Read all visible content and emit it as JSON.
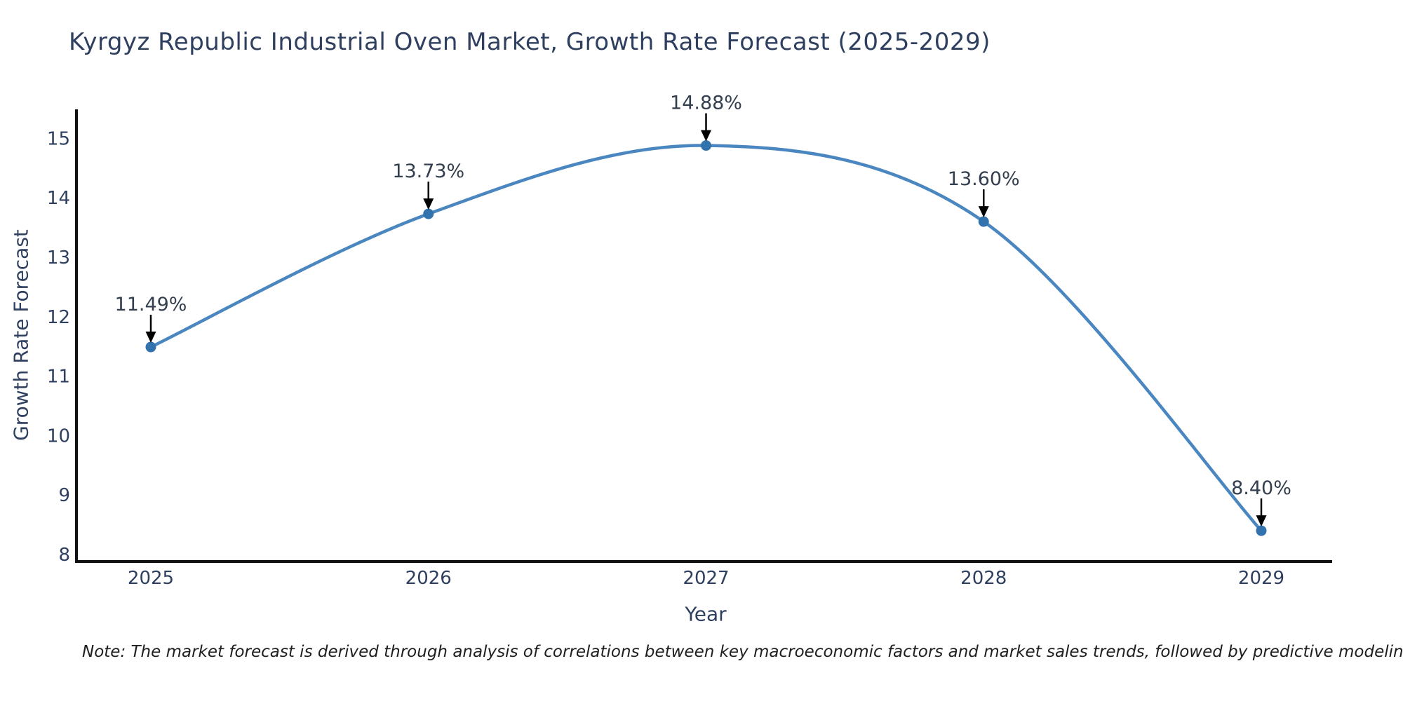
{
  "title": "Kyrgyz Republic Industrial Oven Market, Growth Rate Forecast (2025-2029)",
  "note": "Note: The market forecast is derived through analysis of correlations between key macroeconomic factors and market sales trends, followed by predictive modeling to project future sales",
  "colors": {
    "line": "#4a86bf",
    "marker": "#3273ae",
    "axis_text": "#2e3f5f",
    "annotation_text": "#333e4e",
    "arrow": "#000000",
    "spine": "#111111",
    "background": "#ffffff"
  },
  "chart_data": {
    "type": "line",
    "title": "Kyrgyz Republic Industrial Oven Market, Growth Rate Forecast (2025-2029)",
    "x": [
      2025,
      2026,
      2027,
      2028,
      2029
    ],
    "series": [
      {
        "name": "Growth Rate Forecast",
        "values": [
          11.49,
          13.73,
          14.88,
          13.6,
          8.4
        ]
      }
    ],
    "annotations": [
      "11.49%",
      "13.73%",
      "14.88%",
      "13.60%",
      "8.40%"
    ],
    "xlabel": "Year",
    "ylabel": "Growth Rate Forecast",
    "yticks": [
      8,
      9,
      10,
      11,
      12,
      13,
      14,
      15
    ],
    "ylim": [
      7.88,
      15.56
    ],
    "xlim": [
      2024.73,
      2029.26
    ],
    "grid": false,
    "legend": "none",
    "curve": "smooth-spline",
    "marker_style": "filled-circle",
    "annotation_arrow": "down-arrow"
  }
}
